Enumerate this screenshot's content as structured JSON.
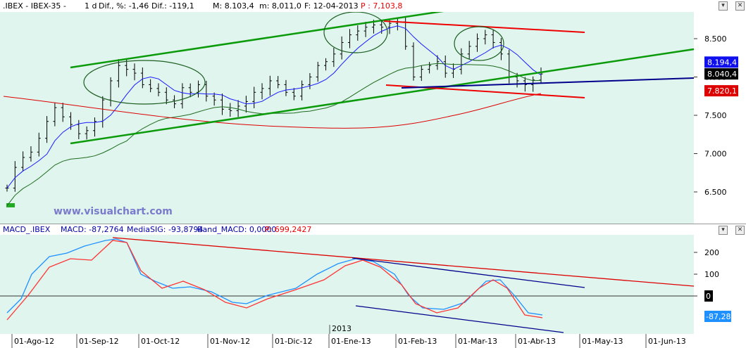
{
  "header": {
    "title": ".IBEX - IBEX-35 -",
    "period": "1 d",
    "dif_pct": "Dif., %: -1,46",
    "dif_abs": "Dif.: -119,1",
    "max": "M: 8.103,4",
    "min": "m: 8,011,0",
    "close": "F: 12-04-2013",
    "p_label": "P : 7,103,8"
  },
  "macd_header": {
    "name": "MACD_.IBEX",
    "macd": "MACD: -87,2764",
    "signal": "MediaSIG: -93,8794",
    "band": "Band_MACD: 0,0000",
    "p_label": "P: 699,2427"
  },
  "watermark": "www.visualchart.com",
  "colors": {
    "background": "#e0f5ee",
    "price_bar": "#000000",
    "ma_blue": "#1a1aff",
    "ma_green": "#1e6b1e",
    "ma_red": "#dd0000",
    "trend_green": "#0a9a0a",
    "trend_red": "#ee0000",
    "trend_navy": "#00008b",
    "macd_line": "#1e90ff",
    "signal_line": "#ff3333"
  },
  "chart_data": [
    {
      "type": "ohlc",
      "name": "price",
      "y_ticks": [
        "8.500",
        "8.000",
        "7.500",
        "7.000",
        "6.500"
      ],
      "ylim": [
        6200,
        8850
      ],
      "x_labels": [
        "01-Ago-12",
        "01-Sep-12",
        "01-Oct-12",
        "01-Nov-12",
        "01-Dic-12",
        "01-Ene-13",
        "01-Feb-13",
        "01-Mar-13",
        "01-Abr-13",
        "01-May-13",
        "01-Jun-13"
      ],
      "year_marker": "2013",
      "price_badges": [
        {
          "label": "8.194,4",
          "value": 8194.4,
          "bg": "#1010ee",
          "color": "#ffffff"
        },
        {
          "label": "8.040,4",
          "value": 8040.4,
          "bg": "#000000",
          "color": "#ffffff"
        },
        {
          "label": "7.820,1",
          "value": 7820.1,
          "bg": "#dd0000",
          "color": "#ffffff"
        }
      ],
      "closes": [
        6550,
        6820,
        6950,
        7020,
        7200,
        7420,
        7600,
        7480,
        7380,
        7260,
        7300,
        7420,
        7700,
        7950,
        8150,
        8100,
        8050,
        7900,
        7850,
        7800,
        7700,
        7650,
        7860,
        7800,
        7900,
        7750,
        7700,
        7580,
        7560,
        7620,
        7680,
        7800,
        7850,
        7950,
        7900,
        7800,
        7750,
        7900,
        8000,
        8150,
        8200,
        8300,
        8450,
        8550,
        8600,
        8650,
        8680,
        8650,
        8700,
        8720,
        8400,
        8000,
        8100,
        8150,
        8200,
        8050,
        8100,
        8300,
        8400,
        8500,
        8550,
        8450,
        8300,
        8000,
        7950,
        7900,
        7960,
        8040
      ]
    },
    {
      "type": "line",
      "name": "macd",
      "y_ticks": [
        "200",
        "100",
        "0"
      ],
      "ylim": [
        -150,
        280
      ],
      "zero_badge": "0",
      "value_badge": "-87,28"
    }
  ]
}
